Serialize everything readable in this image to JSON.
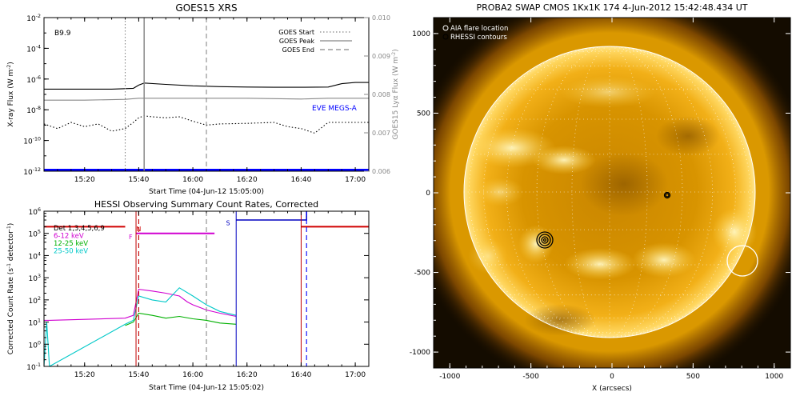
{
  "chart_data": [
    {
      "type": "line",
      "title": "GOES15 XRS",
      "xlabel": "Start Time (04-Jun-12 15:05:00)",
      "ylabel": "X-ray Flux (W m",
      "ylabel_sup": "-2",
      "ylabel_end": ")",
      "ylabel_right": "GOES15 Lyα Flux (W m",
      "ylabel_right_sup": "-2",
      "ylabel_right_end": ")",
      "class_label": "B9.9",
      "xlim": [
        "15:05",
        "17:05"
      ],
      "ylim": [
        1e-12,
        0.01
      ],
      "ylim_right": [
        0.006,
        0.01
      ],
      "x_ticks": [
        "15:20",
        "15:40",
        "16:00",
        "16:20",
        "16:40",
        "17:00"
      ],
      "y_ticks": [
        {
          "base": "10",
          "exp": "-12",
          "value": 1e-12
        },
        {
          "base": "10",
          "exp": "-10",
          "value": 1e-10
        },
        {
          "base": "10",
          "exp": "-8",
          "value": 1e-08
        },
        {
          "base": "10",
          "exp": "-6",
          "value": 1e-06
        },
        {
          "base": "10",
          "exp": "-4",
          "value": 0.0001
        },
        {
          "base": "10",
          "exp": "-2",
          "value": 0.01
        }
      ],
      "y_ticks_right": [
        "0.006",
        "0.007",
        "0.008",
        "0.009",
        "0.010"
      ],
      "markers": [
        {
          "name": "GOES Start",
          "time": "15:35",
          "style": "dotted",
          "color": "#888888"
        },
        {
          "name": "GOES Peak",
          "time": "15:42",
          "style": "solid",
          "color": "#888888"
        },
        {
          "name": "GOES End",
          "time": "16:05",
          "style": "dashed",
          "color": "#888888"
        }
      ],
      "annotation": "EVE MEGS-A",
      "series": [
        {
          "name": "",
          "color": "#000000",
          "style": "solid",
          "x": [
            "15:05",
            "15:30",
            "15:38",
            "15:40",
            "15:42",
            "15:50",
            "16:00",
            "16:10",
            "16:20",
            "16:30",
            "16:40",
            "16:50",
            "16:55",
            "17:00",
            "17:05"
          ],
          "y": [
            2.2e-07,
            2.2e-07,
            2.5e-07,
            4e-07,
            5.5e-07,
            4.5e-07,
            3.6e-07,
            3.2e-07,
            3e-07,
            2.9e-07,
            2.9e-07,
            3e-07,
            5e-07,
            6e-07,
            6e-07
          ]
        },
        {
          "name": "",
          "color": "#000000",
          "style": "dotted",
          "x": [
            "15:05",
            "15:10",
            "15:15",
            "15:20",
            "15:25",
            "15:30",
            "15:35",
            "15:38",
            "15:40",
            "15:42",
            "15:45",
            "15:50",
            "15:55",
            "16:00",
            "16:05",
            "16:10",
            "16:20",
            "16:30",
            "16:35",
            "16:40",
            "16:45",
            "16:50",
            "17:05"
          ],
          "y": [
            1.2e-09,
            6e-10,
            1.5e-09,
            8e-10,
            1.2e-09,
            4e-10,
            6e-10,
            1.5e-09,
            3e-09,
            4e-09,
            3.5e-09,
            3e-09,
            3.5e-09,
            1.8e-09,
            1e-09,
            1.2e-09,
            1.3e-09,
            1.5e-09,
            8e-10,
            6e-10,
            3e-10,
            1.5e-09,
            1.5e-09
          ]
        },
        {
          "name": "",
          "color": "#888888",
          "style": "solid",
          "axis": "right",
          "x": [
            "15:05",
            "15:20",
            "15:35",
            "15:40",
            "15:45",
            "16:00",
            "16:20",
            "16:40",
            "16:50",
            "17:05"
          ],
          "y": [
            0.00785,
            0.00785,
            0.00787,
            0.0079,
            0.0079,
            0.0079,
            0.0079,
            0.00788,
            0.0079,
            0.0079
          ]
        },
        {
          "name": "",
          "color": "#0000ff",
          "style": "solid",
          "x": [
            "15:05",
            "17:05"
          ],
          "y": [
            1.2e-12,
            1.2e-12
          ]
        }
      ]
    },
    {
      "type": "line",
      "title": "HESSI Observing Summary Count Rates, Corrected",
      "xlabel": "Start Time (04-Jun-12 15:05:02)",
      "ylabel": "Corrected Count Rate (s",
      "ylabel_sup1": "-1",
      "ylabel_mid": " detector",
      "ylabel_sup2": "-1",
      "ylabel_end": ")",
      "xlim": [
        "15:05",
        "17:05"
      ],
      "ylim": [
        0.1,
        1000000.0
      ],
      "x_ticks": [
        "15:20",
        "15:40",
        "16:00",
        "16:20",
        "16:40",
        "17:00"
      ],
      "y_ticks": [
        {
          "base": "10",
          "exp": "-1",
          "value": 0.1
        },
        {
          "base": "10",
          "exp": "0",
          "value": 1
        },
        {
          "base": "10",
          "exp": "1",
          "value": 10
        },
        {
          "base": "10",
          "exp": "2",
          "value": 100
        },
        {
          "base": "10",
          "exp": "3",
          "value": 1000
        },
        {
          "base": "10",
          "exp": "4",
          "value": 10000
        },
        {
          "base": "10",
          "exp": "5",
          "value": 100000
        },
        {
          "base": "10",
          "exp": "6",
          "value": 1000000
        }
      ],
      "legend": [
        {
          "name": "Det 1,3,4,5,6,9",
          "color": "#000000"
        },
        {
          "name": "6-12 keV",
          "color": "#d000d0"
        },
        {
          "name": "12-25 keV",
          "color": "#00b000"
        },
        {
          "name": "25-50 keV",
          "color": "#00c8c8"
        }
      ],
      "flags": [
        {
          "label": "F",
          "color": "#d000d0"
        },
        {
          "label": "N",
          "color": "#d00000"
        },
        {
          "label": "S",
          "color": "#0000c0"
        }
      ],
      "markers": [
        {
          "time": "15:40",
          "style": "dashed",
          "color": "#c00000"
        },
        {
          "time": "16:05",
          "style": "dashed",
          "color": "#888888"
        },
        {
          "time": "16:42",
          "style": "dashed",
          "color": "#0000ff"
        }
      ],
      "series": [
        {
          "name": "6-12 keV",
          "color": "#d000d0",
          "x": [
            "15:05",
            "15:07",
            "15:35",
            "15:38",
            "15:40",
            "15:45",
            "15:50",
            "15:55",
            "15:58",
            "16:00",
            "16:05",
            "16:10",
            "16:16"
          ],
          "y": [
            12,
            12,
            15,
            20,
            300,
            250,
            200,
            150,
            80,
            60,
            35,
            25,
            18
          ]
        },
        {
          "name": "12-25 keV",
          "color": "#00b000",
          "x": [
            "15:35",
            "15:38",
            "15:40",
            "15:45",
            "15:50",
            "15:55",
            "16:00",
            "16:05",
            "16:10",
            "16:16"
          ],
          "y": [
            7,
            10,
            25,
            20,
            15,
            18,
            14,
            12,
            9,
            8
          ]
        },
        {
          "name": "25-50 keV",
          "color": "#00c8c8",
          "x": [
            "15:05",
            "15:06",
            "15:07",
            "15:35",
            "15:38",
            "15:40",
            "15:45",
            "15:50",
            "15:55",
            "16:00",
            "16:05",
            "16:10",
            "16:16"
          ],
          "y": [
            0.1,
            10,
            0.1,
            8,
            12,
            150,
            100,
            80,
            350,
            150,
            60,
            30,
            20
          ]
        }
      ]
    },
    {
      "type": "heatmap",
      "title": "PROBA2 SWAP CMOS 1Kx1K 174   4-Jun-2012 15:42:48.434 UT",
      "xlabel": "X (arcsecs)",
      "x_ticks": [
        "-1000",
        "-500",
        "0",
        "500",
        "1000"
      ],
      "y_ticks": [
        "1000",
        "500",
        "0",
        "-500",
        "-1000"
      ],
      "xlim": [
        -1100,
        1100
      ],
      "ylim": [
        -1100,
        1100
      ],
      "legend": [
        {
          "name": "AIA flare location"
        },
        {
          "name": "RHESSI contours"
        }
      ]
    }
  ]
}
